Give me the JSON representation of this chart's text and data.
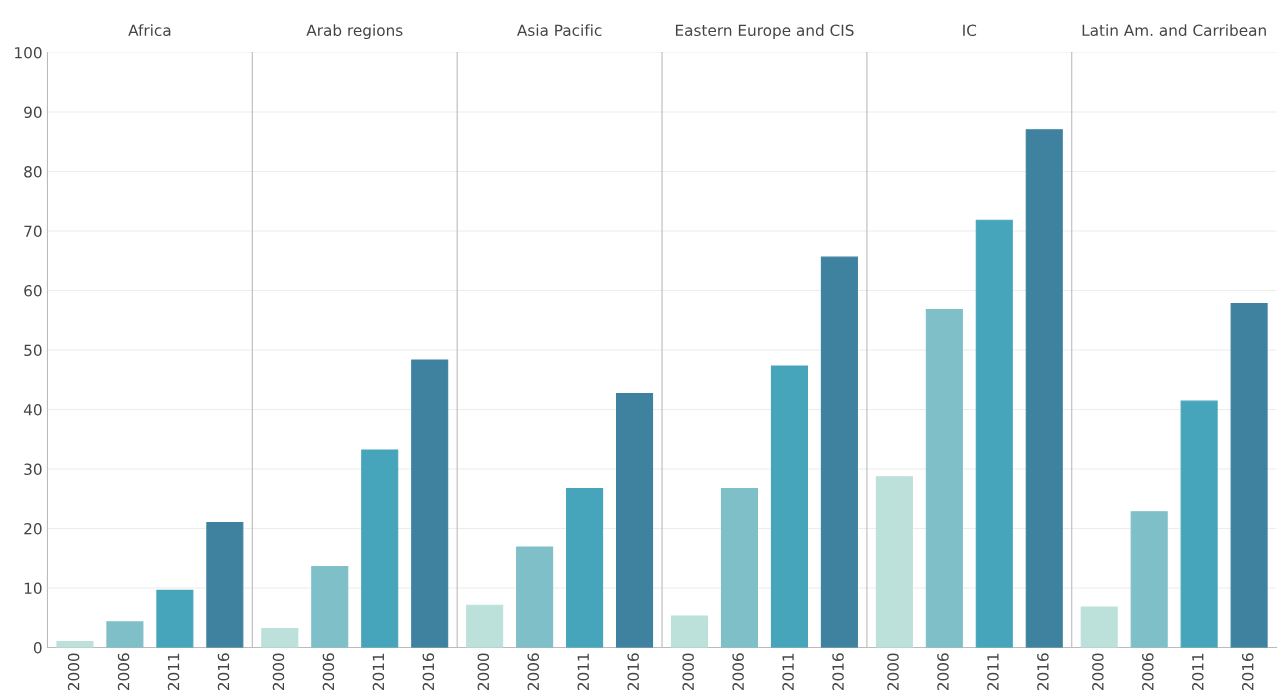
{
  "chart_data": [
    {
      "type": "bar",
      "title": "Africa",
      "categories": [
        "2000",
        "2006",
        "2011",
        "2016"
      ],
      "values": [
        1.0,
        4.3,
        9.6,
        21.0
      ],
      "colors": [
        "#bce0da",
        "#7fbfc8",
        "#46a5ba",
        "#3f82a0"
      ],
      "ylim": [
        0,
        100
      ],
      "yticks": [
        0,
        10,
        20,
        30,
        40,
        50,
        60,
        70,
        80,
        90,
        100
      ],
      "grid": "y"
    },
    {
      "type": "bar",
      "title": "Arab regions",
      "categories": [
        "2000",
        "2006",
        "2011",
        "2016"
      ],
      "values": [
        3.2,
        13.6,
        33.2,
        48.3
      ],
      "colors": [
        "#bce0da",
        "#7fbfc8",
        "#46a5ba",
        "#3f82a0"
      ],
      "ylim": [
        0,
        100
      ],
      "yticks": [
        0,
        10,
        20,
        30,
        40,
        50,
        60,
        70,
        80,
        90,
        100
      ],
      "grid": "y",
      "tick_labels": "x"
    },
    {
      "type": "bar",
      "title": "Asia Pacific",
      "categories": [
        "2000",
        "2006",
        "2011",
        "2016"
      ],
      "values": [
        7.1,
        16.9,
        26.7,
        42.7
      ],
      "colors": [
        "#bce0da",
        "#7fbfc8",
        "#46a5ba",
        "#3f82a0"
      ],
      "ylim": [
        0,
        100
      ],
      "yticks": [
        0,
        10,
        20,
        30,
        40,
        50,
        60,
        70,
        80,
        90,
        100
      ],
      "grid": "y",
      "tick_labels": "x"
    },
    {
      "type": "bar",
      "title": "Eastern Europe and CIS",
      "categories": [
        "2000",
        "2006",
        "2011",
        "2016"
      ],
      "values": [
        5.3,
        26.7,
        47.3,
        65.6
      ],
      "colors": [
        "#bce0da",
        "#7fbfc8",
        "#46a5ba",
        "#3f82a0"
      ],
      "ylim": [
        0,
        100
      ],
      "yticks": [
        0,
        10,
        20,
        30,
        40,
        50,
        60,
        70,
        80,
        90,
        100
      ],
      "grid": "y",
      "tick_labels": "x"
    },
    {
      "type": "bar",
      "title": "IC",
      "categories": [
        "2000",
        "2006",
        "2011",
        "2016"
      ],
      "values": [
        28.7,
        56.8,
        71.8,
        87.0
      ],
      "colors": [
        "#bce0da",
        "#7fbfc8",
        "#46a5ba",
        "#3f82a0"
      ],
      "ylim": [
        0,
        100
      ],
      "yticks": [
        0,
        10,
        20,
        30,
        40,
        50,
        60,
        70,
        80,
        90,
        100
      ],
      "grid": "y",
      "tick_labels": "x"
    },
    {
      "type": "bar",
      "title": "Latin Am. and Carribean",
      "categories": [
        "2000",
        "2006",
        "2011",
        "2016"
      ],
      "values": [
        6.8,
        22.8,
        41.4,
        57.8
      ],
      "colors": [
        "#bce0da",
        "#7fbfc8",
        "#46a5ba",
        "#3f82a0"
      ],
      "ylim": [
        0,
        100
      ],
      "yticks": [
        0,
        10,
        20,
        30,
        40,
        50,
        60,
        70,
        80,
        90,
        100
      ],
      "grid": "y",
      "tick_labels": "x"
    }
  ]
}
